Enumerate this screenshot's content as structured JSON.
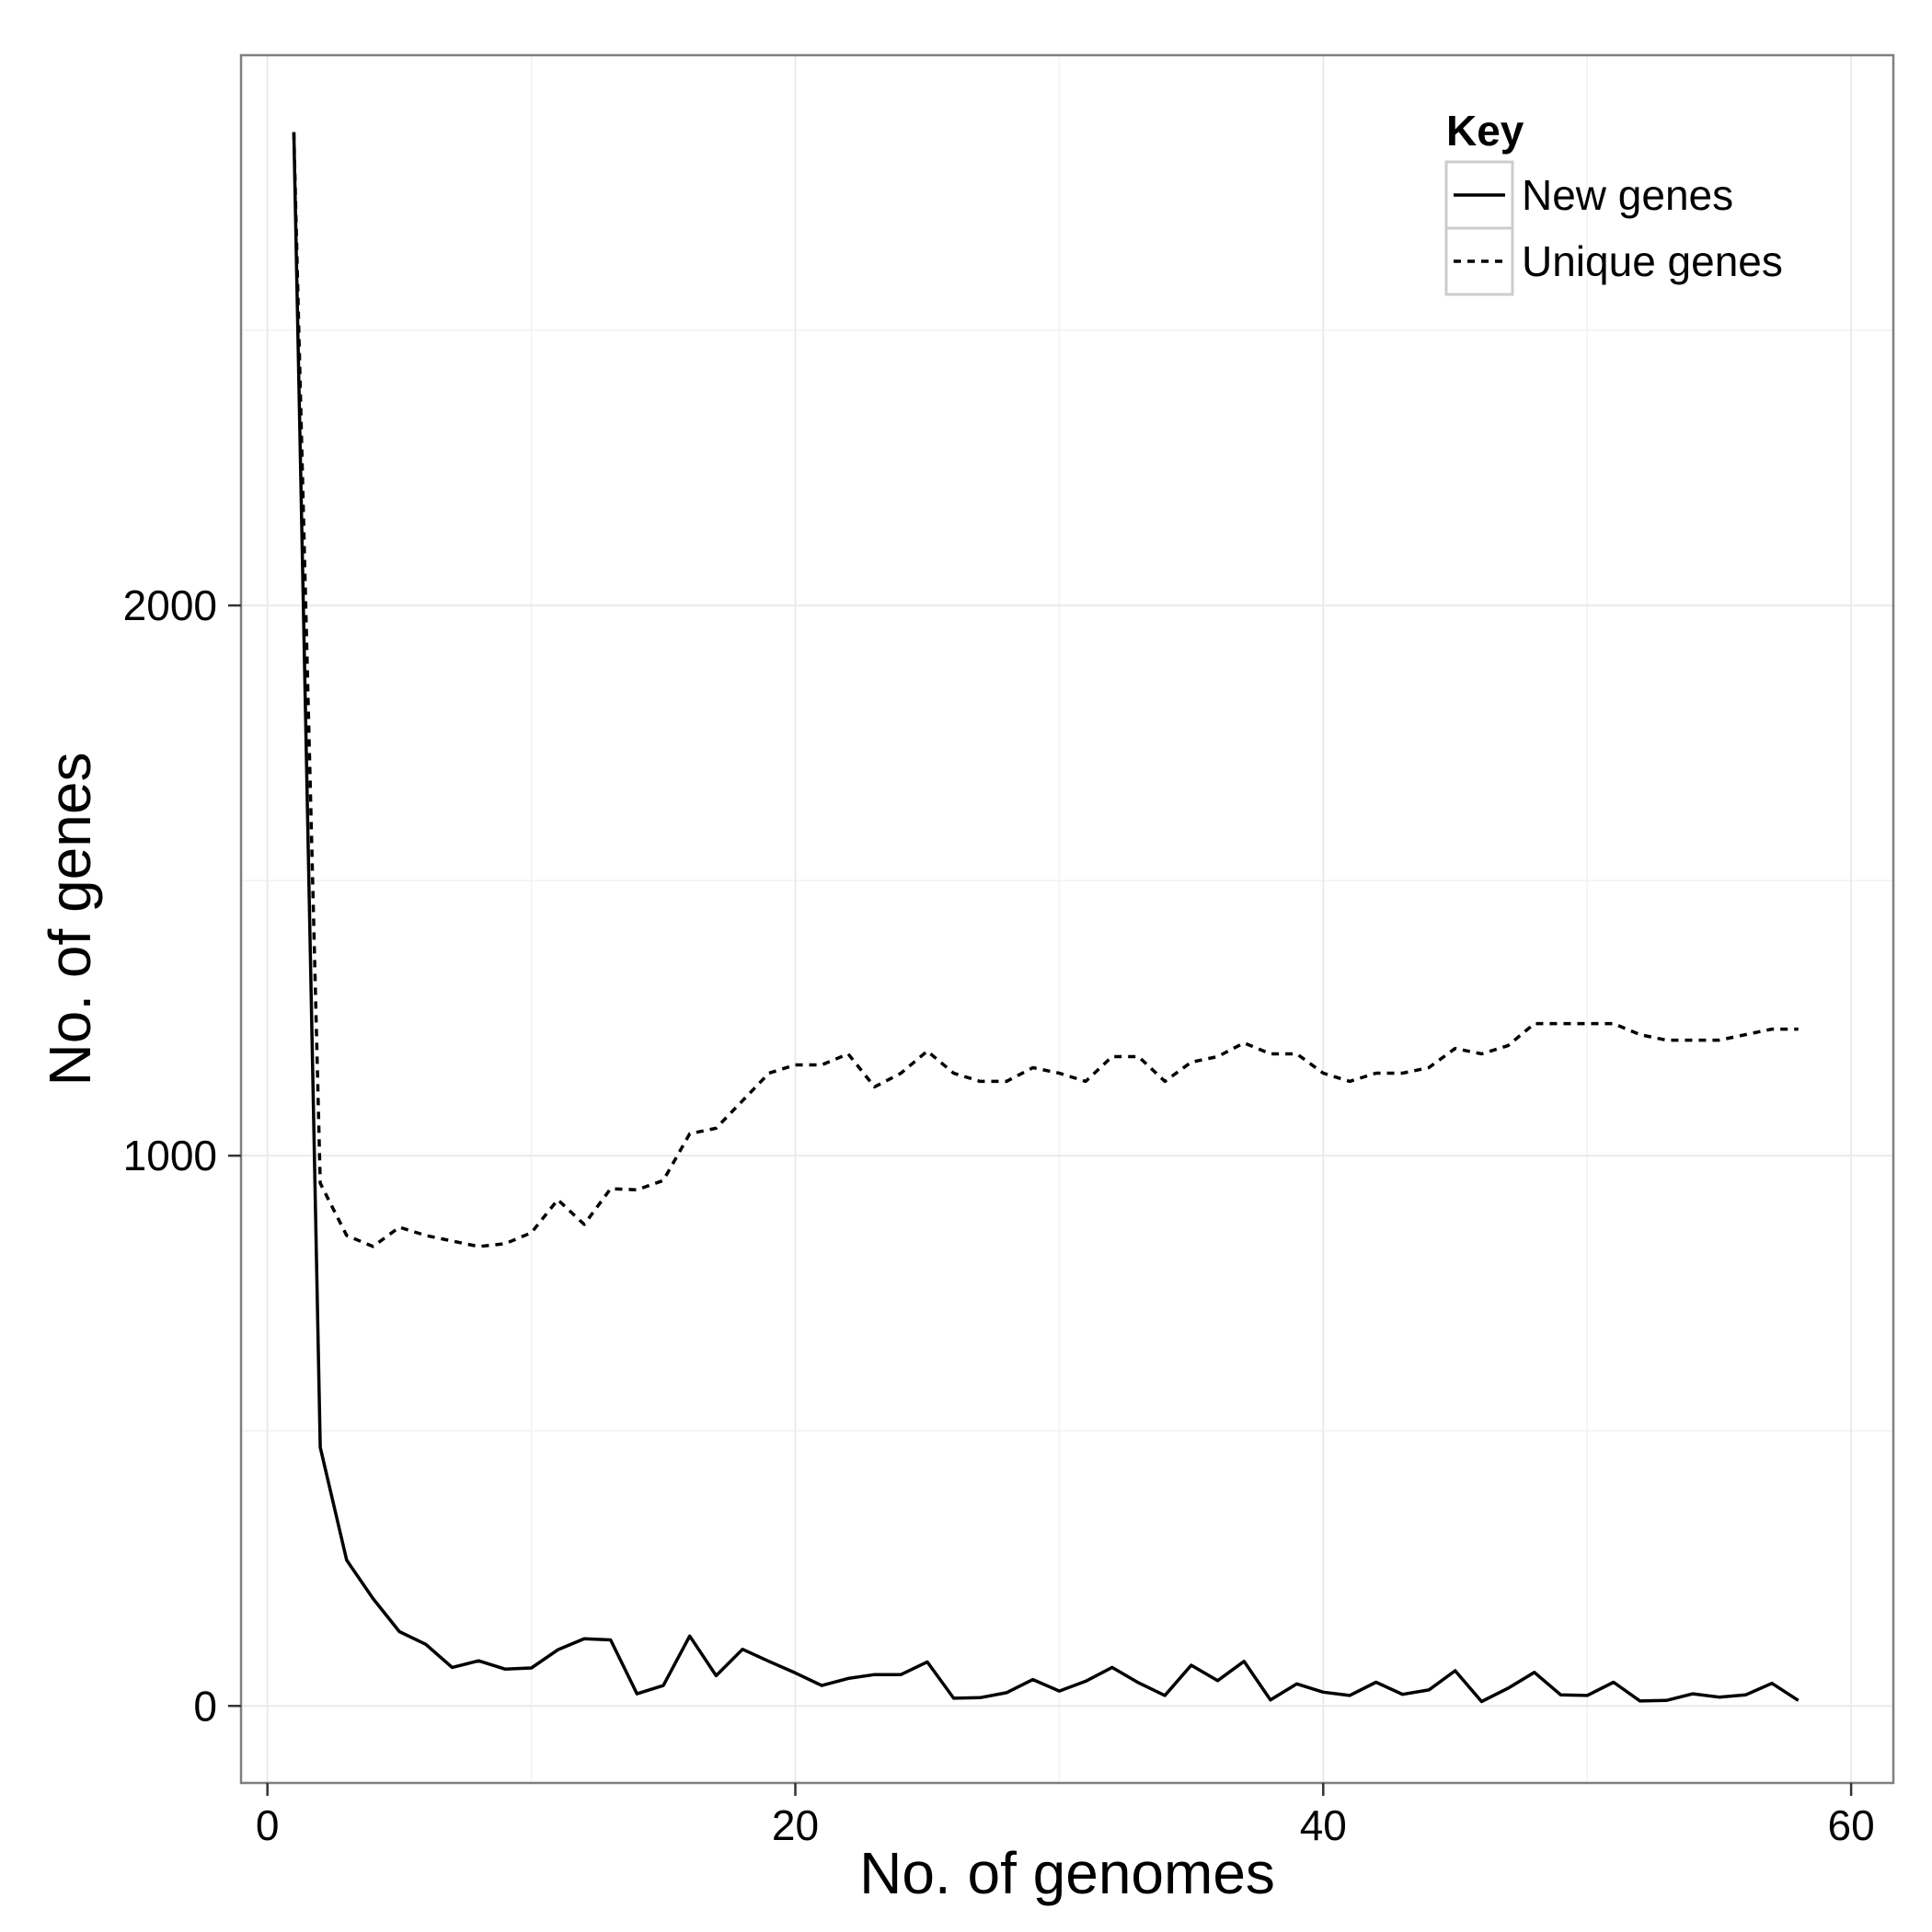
{
  "chart_data": {
    "type": "line",
    "xlabel": "No. of genomes",
    "ylabel": "No. of genes",
    "xlim": [
      -1,
      61.6
    ],
    "ylim": [
      -140,
      3000
    ],
    "x_ticks": [
      0,
      20,
      40,
      60
    ],
    "y_ticks": [
      0,
      1000,
      2000
    ],
    "grid": true,
    "legend": {
      "title": "Key",
      "position": "top-right"
    },
    "series": [
      {
        "name": "New genes",
        "line_style": "solid",
        "x": [
          1,
          2,
          3,
          4,
          5,
          6,
          7,
          8,
          9,
          10,
          11,
          12,
          13,
          14,
          15,
          16,
          17,
          18,
          19,
          20,
          21,
          22,
          23,
          24,
          25,
          26,
          27,
          28,
          29,
          30,
          31,
          32,
          33,
          34,
          35,
          36,
          37,
          38,
          39,
          40,
          41,
          42,
          43,
          44,
          45,
          46,
          47,
          48,
          49,
          50,
          51,
          52,
          53,
          54,
          55,
          56,
          57,
          58
        ],
        "values": [
          2860,
          470,
          265,
          195,
          135,
          112,
          70,
          82,
          67,
          69,
          102,
          122,
          120,
          22,
          37,
          127,
          55,
          103,
          81,
          60,
          37,
          50,
          57,
          57,
          80,
          14,
          15,
          24,
          48,
          27,
          45,
          70,
          42,
          19,
          74,
          46,
          81,
          11,
          40,
          25,
          19,
          43,
          21,
          29,
          64,
          8,
          32,
          61,
          20,
          19,
          43,
          9,
          10,
          22,
          16,
          20,
          41,
          10
        ],
        "color": "#000000"
      },
      {
        "name": "Unique genes",
        "line_style": "dashed",
        "x": [
          1,
          2,
          3,
          4,
          5,
          6,
          7,
          8,
          9,
          10,
          11,
          12,
          13,
          14,
          15,
          16,
          17,
          18,
          19,
          20,
          21,
          22,
          23,
          24,
          25,
          26,
          27,
          28,
          29,
          30,
          31,
          32,
          33,
          34,
          35,
          36,
          37,
          38,
          39,
          40,
          41,
          42,
          43,
          44,
          45,
          46,
          47,
          48,
          49,
          50,
          51,
          52,
          53,
          54,
          55,
          56,
          57,
          58
        ],
        "values": [
          2860,
          950,
          855,
          835,
          870,
          855,
          845,
          835,
          840,
          860,
          920,
          875,
          940,
          938,
          955,
          1040,
          1050,
          1100,
          1150,
          1165,
          1165,
          1185,
          1125,
          1150,
          1190,
          1150,
          1135,
          1135,
          1160,
          1150,
          1135,
          1180,
          1180,
          1135,
          1170,
          1180,
          1205,
          1185,
          1185,
          1150,
          1135,
          1150,
          1150,
          1160,
          1195,
          1185,
          1200,
          1240,
          1240,
          1240,
          1240,
          1220,
          1210,
          1210,
          1210,
          1220,
          1230,
          1230
        ],
        "color": "#000000"
      }
    ]
  }
}
